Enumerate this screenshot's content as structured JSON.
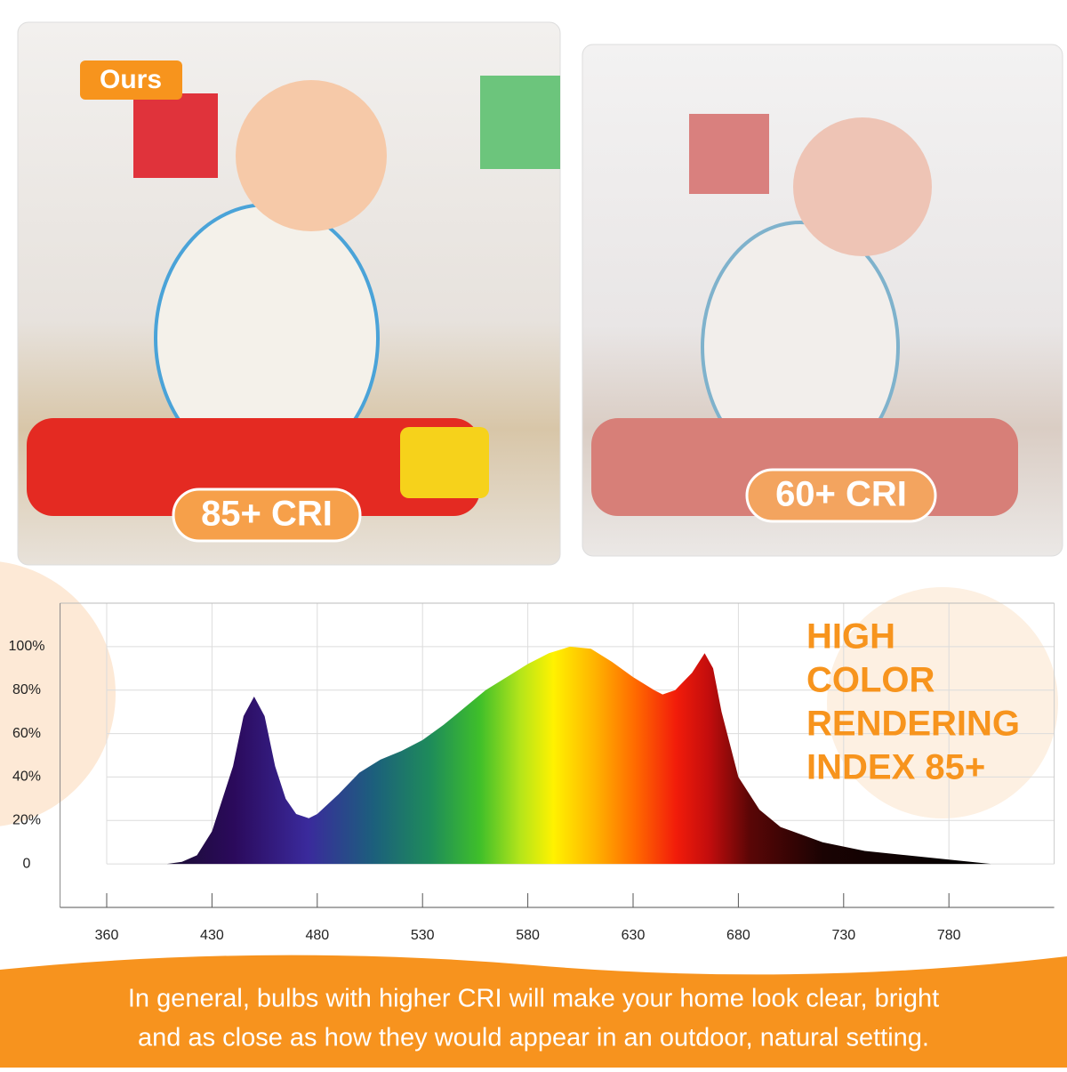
{
  "photos": [
    {
      "badge": "Ours",
      "label": "85+ CRI"
    },
    {
      "label": "60+ CRI"
    }
  ],
  "heading_lines": [
    "HIGH",
    "COLOR",
    "RENDERING",
    "INDEX 85+"
  ],
  "caption_lines": [
    "In general, bulbs with higher CRI will make your home look clear, bright",
    "and as close as how they would appear in an outdoor, natural setting."
  ],
  "chart_data": {
    "type": "area",
    "x": [
      360,
      400,
      410,
      420,
      430,
      440,
      445,
      450,
      455,
      460,
      465,
      470,
      476,
      480,
      490,
      500,
      510,
      520,
      530,
      540,
      550,
      560,
      570,
      580,
      590,
      600,
      610,
      620,
      630,
      640,
      644,
      650,
      658,
      664,
      668,
      672,
      680,
      690,
      700,
      720,
      740,
      760,
      780,
      800
    ],
    "values": [
      0,
      0,
      1,
      4,
      15,
      45,
      68,
      77,
      68,
      45,
      30,
      23,
      21,
      23,
      32,
      42,
      48,
      52,
      57,
      64,
      72,
      80,
      86,
      92,
      97,
      100,
      99,
      93,
      86,
      80,
      78,
      80,
      88,
      97,
      90,
      70,
      40,
      25,
      17,
      10,
      6,
      4,
      2,
      0
    ],
    "xlim": [
      329,
      830
    ],
    "xticks": [
      360,
      430,
      480,
      530,
      580,
      630,
      680,
      730,
      780
    ],
    "ylim": [
      -20,
      120
    ],
    "yticks": [
      {
        "value": 100,
        "label": "100%"
      },
      {
        "value": 80,
        "label": "80%"
      },
      {
        "value": 60,
        "label": "60%"
      },
      {
        "value": 40,
        "label": "40%"
      },
      {
        "value": 20,
        "label": "20%"
      },
      0
    ],
    "grid": true
  }
}
